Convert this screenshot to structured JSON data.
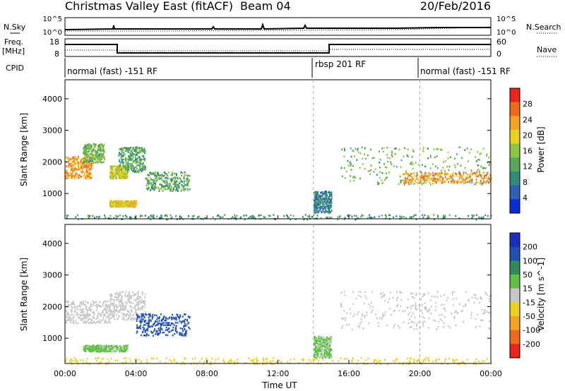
{
  "header": {
    "title": "Christmas Valley East (fitACF)",
    "beam": "Beam 04",
    "date": "20/Feb/2016"
  },
  "nsky_panel": {
    "left_label": "N.Sky",
    "right_label": "N.Search",
    "ticks": [
      "10^5",
      "10^0"
    ]
  },
  "freq_panel": {
    "left_label_1": "Freq.",
    "left_label_2": "[MHz]",
    "left_ticks": [
      "18",
      "8"
    ],
    "right_ticks": [
      "60",
      "0"
    ],
    "right_label": "Nave"
  },
  "cpid_panel": {
    "label": "CPID",
    "segments": [
      {
        "text": "normal (fast) -151 RF",
        "start_hour": 0
      },
      {
        "text": "rbsp 201 RF",
        "start_hour": 14
      },
      {
        "text": "normal (fast) -151 RF",
        "start_hour": 20
      }
    ]
  },
  "colors": {
    "power": [
      "#0a2cd6",
      "#2e5fb0",
      "#2f8a7a",
      "#5aa75c",
      "#8dc63f",
      "#e8d21d",
      "#f7a321",
      "#f06a1c",
      "#e8261a"
    ],
    "velocity": [
      "#e8261a",
      "#f06a1c",
      "#f7a321",
      "#e8d21d",
      "#c8c8c8",
      "#5ec142",
      "#2e8a5a",
      "#1f4fb0",
      "#1a2fbf"
    ]
  },
  "chart_data": [
    {
      "type": "heatmap",
      "name": "power",
      "ylabel": "Slant Range [km]",
      "yticks": [
        "1000",
        "2000",
        "3000",
        "4000"
      ],
      "ylim": [
        200,
        4600
      ],
      "xlim": [
        0,
        24
      ],
      "colorbar": {
        "label": "Power [dB]",
        "ticks": [
          "4",
          "8",
          "12",
          "16",
          "20",
          "24",
          "28"
        ],
        "range": [
          0,
          32
        ]
      },
      "features": [
        {
          "x": [
            0.0,
            1.5
          ],
          "y": [
            1500,
            2200
          ],
          "value": 24
        },
        {
          "x": [
            1.0,
            2.2
          ],
          "y": [
            2000,
            2600
          ],
          "value": 14
        },
        {
          "x": [
            2.5,
            3.5
          ],
          "y": [
            1500,
            1900
          ],
          "value": 18
        },
        {
          "x": [
            3.0,
            4.5
          ],
          "y": [
            1700,
            2500
          ],
          "value": 12
        },
        {
          "x": [
            4.5,
            7.0
          ],
          "y": [
            1100,
            1700
          ],
          "value": 12
        },
        {
          "x": [
            2.5,
            4.0
          ],
          "y": [
            600,
            800
          ],
          "value": 20
        },
        {
          "x": [
            14.0,
            15.0
          ],
          "y": [
            400,
            1100
          ],
          "value": 8
        },
        {
          "x": [
            15.5,
            24.0
          ],
          "y": [
            1300,
            2500
          ],
          "value": 14
        },
        {
          "x": [
            19.0,
            24.0
          ],
          "y": [
            1350,
            1700
          ],
          "value": 24
        },
        {
          "x": [
            0.0,
            24.0
          ],
          "y": [
            200,
            350
          ],
          "value": 10
        }
      ]
    },
    {
      "type": "heatmap",
      "name": "velocity",
      "ylabel": "Slant Range [km]",
      "yticks": [
        "1000",
        "2000",
        "3000",
        "4000"
      ],
      "ylim": [
        200,
        4600
      ],
      "xlim": [
        0,
        24
      ],
      "colorbar": {
        "label": "Velocity [m s^-1]",
        "ticks": [
          "200",
          "100",
          "50",
          "15",
          "-15",
          "-50",
          "-100",
          "-200"
        ],
        "range": [
          -250,
          250
        ]
      },
      "features": [
        {
          "x": [
            0.0,
            2.5
          ],
          "y": [
            1500,
            2200
          ],
          "value": 0
        },
        {
          "x": [
            2.5,
            4.5
          ],
          "y": [
            1600,
            2500
          ],
          "value": 0
        },
        {
          "x": [
            4.0,
            7.0
          ],
          "y": [
            1100,
            1800
          ],
          "value": 150
        },
        {
          "x": [
            1.0,
            3.5
          ],
          "y": [
            600,
            800
          ],
          "value": 30
        },
        {
          "x": [
            14.0,
            15.0
          ],
          "y": [
            400,
            1100
          ],
          "value": 30
        },
        {
          "x": [
            15.5,
            24.0
          ],
          "y": [
            1300,
            2500
          ],
          "value": 0
        },
        {
          "x": [
            0.0,
            24.0
          ],
          "y": [
            200,
            400
          ],
          "value": -40
        }
      ]
    }
  ],
  "x_axis": {
    "ticks": [
      "00:00",
      "04:00",
      "08:00",
      "12:00",
      "16:00",
      "20:00",
      "00:00"
    ],
    "tick_hours": [
      0,
      4,
      8,
      12,
      16,
      20,
      24
    ],
    "label": "Time UT"
  }
}
